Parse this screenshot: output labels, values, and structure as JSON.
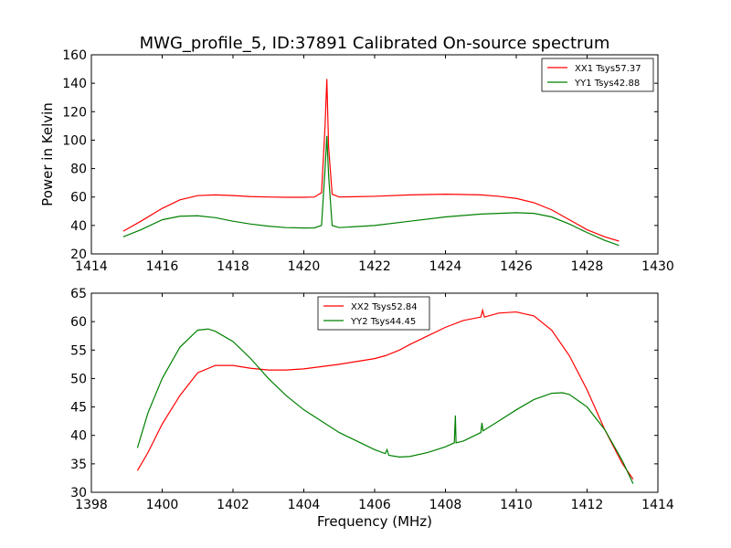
{
  "chart_data": [
    {
      "type": "line",
      "title": "MWG_profile_5, ID:37891 Calibrated On-source spectrum",
      "xlabel": "",
      "ylabel": "Power in Kelvin",
      "xlim": [
        1414,
        1430
      ],
      "ylim": [
        20,
        160
      ],
      "xticks": [
        1414,
        1416,
        1418,
        1420,
        1422,
        1424,
        1426,
        1428,
        1430
      ],
      "yticks": [
        20,
        40,
        60,
        80,
        100,
        120,
        140,
        160
      ],
      "legend_position": "top-right",
      "series": [
        {
          "name": "XX1 Tsys57.37",
          "color": "#ff0000",
          "x": [
            1414.9,
            1415.4,
            1416.0,
            1416.5,
            1417.0,
            1417.5,
            1418.0,
            1418.5,
            1419.0,
            1419.5,
            1420.0,
            1420.3,
            1420.5,
            1420.6,
            1420.65,
            1420.7,
            1420.8,
            1421.0,
            1422.0,
            1423.0,
            1424.0,
            1425.0,
            1425.5,
            1426.0,
            1426.5,
            1427.0,
            1427.5,
            1428.0,
            1428.5,
            1428.9
          ],
          "y": [
            36,
            43,
            52,
            58,
            61,
            61.5,
            61,
            60.3,
            60,
            59.8,
            59.8,
            60,
            63,
            110,
            143,
            95,
            62,
            60,
            60.5,
            61.5,
            62,
            61.5,
            60.5,
            59,
            56,
            51,
            44,
            37,
            32,
            29
          ]
        },
        {
          "name": "YY1 Tsys42.88",
          "color": "#008000",
          "x": [
            1414.9,
            1415.4,
            1416.0,
            1416.5,
            1417.0,
            1417.5,
            1418.0,
            1418.5,
            1419.0,
            1419.5,
            1420.0,
            1420.3,
            1420.5,
            1420.6,
            1420.65,
            1420.7,
            1420.8,
            1421.0,
            1422.0,
            1423.0,
            1424.0,
            1425.0,
            1425.5,
            1426.0,
            1426.5,
            1427.0,
            1427.5,
            1428.0,
            1428.5,
            1428.9
          ],
          "y": [
            32,
            37,
            44,
            46.5,
            46.8,
            45.5,
            43,
            41,
            39.5,
            38.5,
            38.2,
            38.3,
            40,
            80,
            103,
            75,
            40,
            38.5,
            40,
            43,
            46,
            48,
            48.5,
            49,
            48.5,
            46,
            41,
            35,
            29.5,
            26
          ]
        }
      ]
    },
    {
      "type": "line",
      "title": "",
      "xlabel": "Frequency (MHz)",
      "ylabel": "",
      "xlim": [
        1398,
        1414
      ],
      "ylim": [
        30,
        65
      ],
      "xticks": [
        1398,
        1400,
        1402,
        1404,
        1406,
        1408,
        1410,
        1412,
        1414
      ],
      "yticks": [
        30,
        35,
        40,
        45,
        50,
        55,
        60,
        65
      ],
      "legend_position": "top-center",
      "series": [
        {
          "name": "XX2 Tsys52.84",
          "color": "#ff0000",
          "x": [
            1399.3,
            1399.6,
            1400.0,
            1400.5,
            1401.0,
            1401.5,
            1402.0,
            1402.5,
            1403.0,
            1403.5,
            1404.0,
            1404.5,
            1405.0,
            1405.5,
            1406.0,
            1406.3,
            1406.7,
            1407.0,
            1407.5,
            1408.0,
            1408.5,
            1409.0,
            1409.05,
            1409.1,
            1409.5,
            1410.0,
            1410.5,
            1411.0,
            1411.5,
            1412.0,
            1412.5,
            1413.0,
            1413.3
          ],
          "y": [
            33.8,
            37,
            42,
            47,
            51,
            52.3,
            52.3,
            51.8,
            51.5,
            51.5,
            51.7,
            52.1,
            52.5,
            53,
            53.5,
            54,
            55,
            56,
            57.5,
            59,
            60.2,
            60.8,
            62,
            60.8,
            61.5,
            61.7,
            61,
            58.5,
            54,
            48,
            41,
            35,
            32.3
          ]
        },
        {
          "name": "YY2 Tsys44.45",
          "color": "#008000",
          "x": [
            1399.3,
            1399.6,
            1400.0,
            1400.5,
            1401.0,
            1401.3,
            1401.5,
            1402.0,
            1402.5,
            1403.0,
            1403.5,
            1404.0,
            1404.5,
            1405.0,
            1405.5,
            1406.0,
            1406.3,
            1406.35,
            1406.4,
            1406.7,
            1407.0,
            1407.5,
            1408.0,
            1408.25,
            1408.28,
            1408.3,
            1408.5,
            1409.0,
            1409.03,
            1409.06,
            1409.5,
            1410.0,
            1410.5,
            1411.0,
            1411.3,
            1411.5,
            1412.0,
            1412.5,
            1413.0,
            1413.3
          ],
          "y": [
            37.8,
            44,
            50,
            55.5,
            58.5,
            58.7,
            58.3,
            56.5,
            53.5,
            50,
            47,
            44.5,
            42.5,
            40.5,
            39,
            37.5,
            36.8,
            37.5,
            36.5,
            36.2,
            36.3,
            37,
            38,
            38.7,
            43.5,
            38.7,
            39,
            40.5,
            42.2,
            40.8,
            42.5,
            44.5,
            46.3,
            47.4,
            47.5,
            47.2,
            45,
            41,
            35.5,
            31.5
          ]
        }
      ]
    }
  ]
}
